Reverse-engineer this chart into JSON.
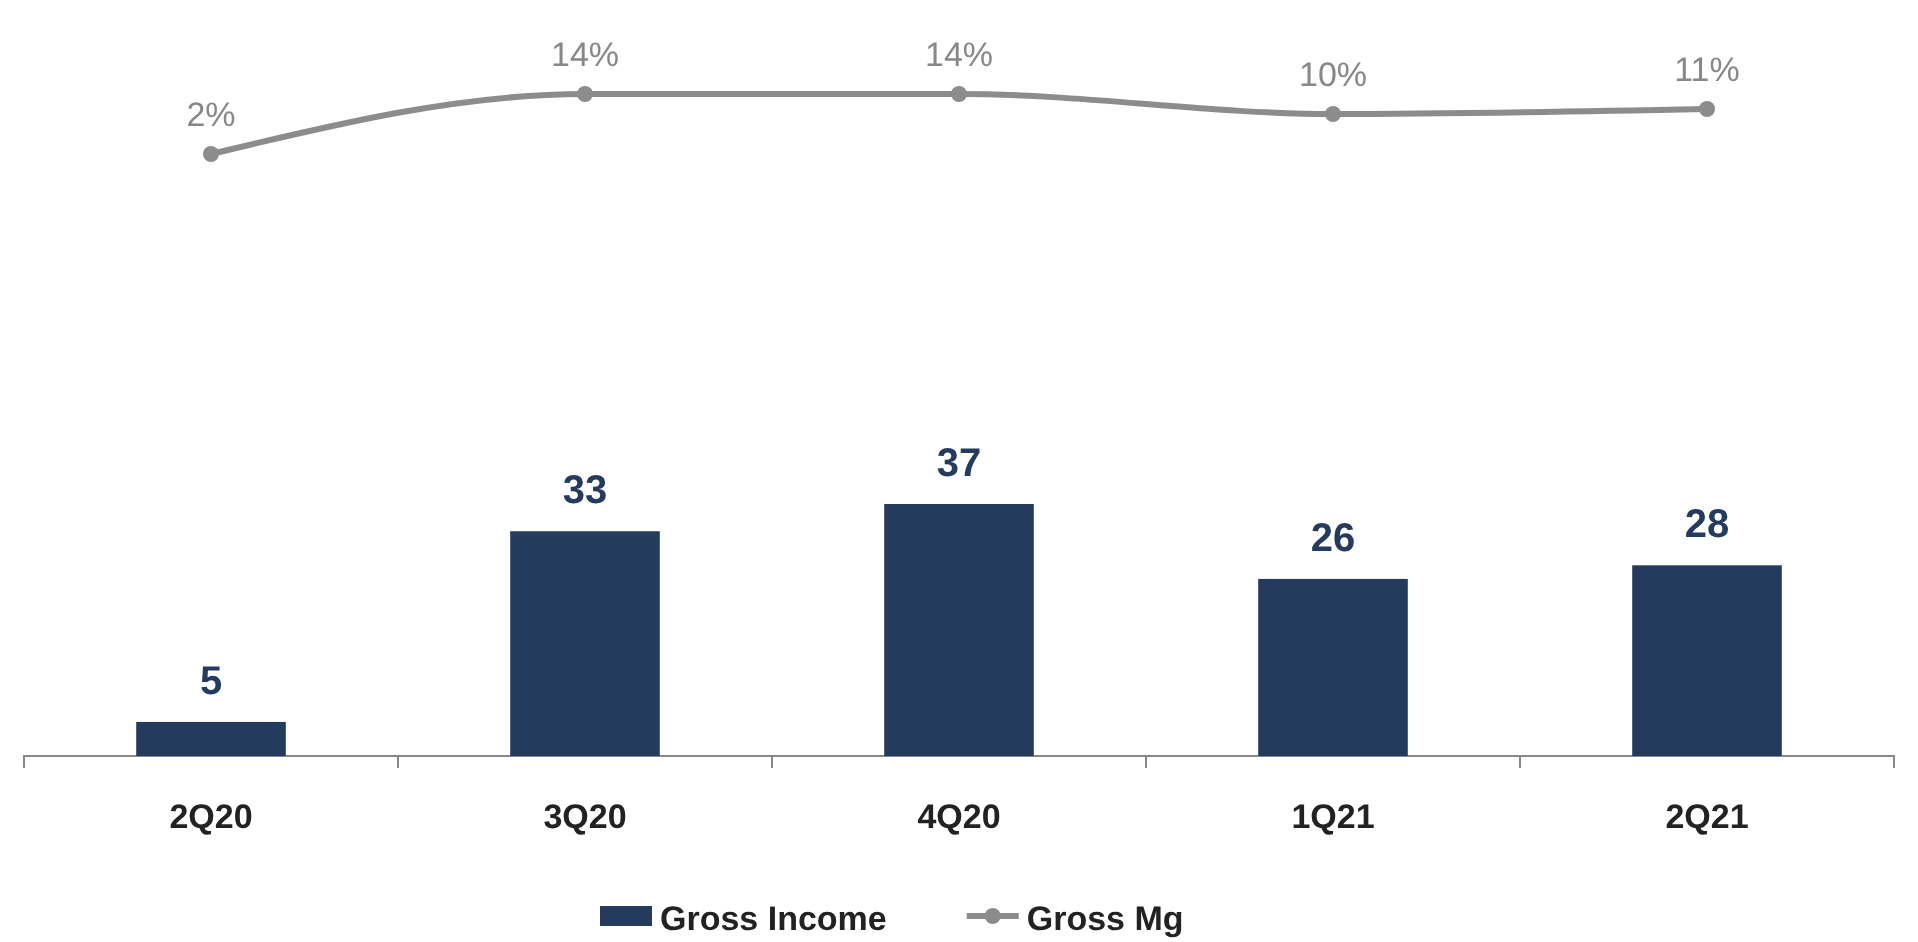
{
  "chart_data": [
    {
      "type": "line",
      "categories": [
        null,
        null,
        null,
        null,
        null
      ],
      "marker": "circle",
      "line_style": "solid",
      "legend": "bottom",
      "series": [
        {
          "name": "Gross Mg",
          "color": "#8c8c8c",
          "values": [
            2,
            14,
            14,
            10,
            11
          ],
          "value_labels": [
            "2%",
            "14%",
            "14%",
            "10%",
            "11%"
          ]
        }
      ]
    },
    {
      "type": "bar",
      "categories": [
        "2Q20",
        "3Q20",
        "4Q20",
        "1Q21",
        "2Q21"
      ],
      "data_labels": true,
      "legend": "bottom",
      "series": [
        {
          "name": "Gross Income",
          "color": "#243b5e",
          "values": [
            5,
            33,
            37,
            26,
            28
          ]
        }
      ]
    }
  ]
}
